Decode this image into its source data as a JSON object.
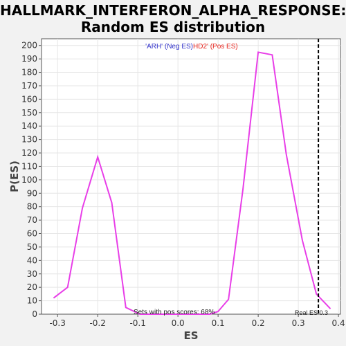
{
  "chart_data": {
    "type": "line",
    "title_line1": "HALLMARK_INTERFERON_ALPHA_RESPONSE:",
    "title_line2": "Random ES distribution",
    "xlabel": "ES",
    "ylabel": "P(ES)",
    "xlim": [
      -0.34,
      0.405
    ],
    "ylim": [
      0,
      205
    ],
    "xticks": [
      -0.3,
      -0.2,
      -0.1,
      0.0,
      0.1,
      0.2,
      0.3,
      0.4
    ],
    "xtick_labels": [
      "-0.3",
      "-0.2",
      "-0.1",
      "0.0",
      "0.1",
      "0.2",
      "0.3",
      "0.4"
    ],
    "yticks": [
      0,
      10,
      20,
      30,
      40,
      50,
      60,
      70,
      80,
      90,
      100,
      110,
      120,
      130,
      140,
      150,
      160,
      170,
      180,
      190,
      200
    ],
    "ytick_labels": [
      "0",
      "10",
      "20",
      "30",
      "40",
      "50",
      "60",
      "70",
      "80",
      "90",
      "100",
      "110",
      "120",
      "130",
      "140",
      "150",
      "160",
      "170",
      "180",
      "190",
      "200"
    ],
    "legend": {
      "neg_label": "'ARH' (Neg ES)",
      "pos_label": "HD2' (Pos ES)",
      "neg_color": "#3333cc",
      "pos_color": "#e8241d"
    },
    "series": [
      {
        "color": "#e83ee8",
        "x": [
          -0.31,
          -0.275,
          -0.238,
          -0.2,
          -0.165,
          -0.13,
          -0.095,
          -0.06,
          -0.025,
          0.01,
          0.045,
          0.08,
          0.1,
          0.126,
          0.162,
          0.2,
          0.235,
          0.27,
          0.31,
          0.345,
          0.38
        ],
        "y": [
          12,
          20,
          79,
          117,
          83,
          5,
          0,
          0,
          0,
          0,
          0,
          0,
          2,
          11,
          93,
          195,
          193,
          119,
          55,
          15,
          4
        ]
      }
    ],
    "real_es": {
      "x": 0.35,
      "label": "Real ES 0.3"
    },
    "annotation": "Sets with pos scores: 68%",
    "grid": true
  }
}
